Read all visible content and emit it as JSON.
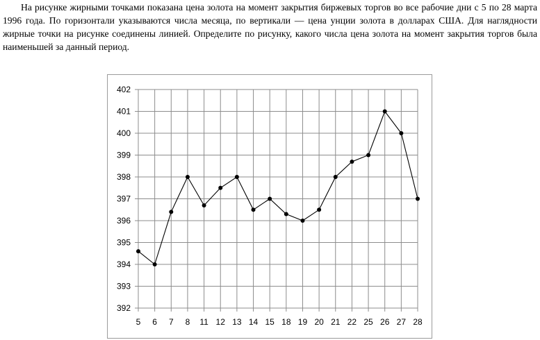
{
  "problem": {
    "text": "На рисунке жирными точками показана цена золота на момент закрытия биржевых торгов во все рабочие дни с 5 по 28 марта 1996 года. По горизонтали указываются числа месяца, по вертикали — цена унции золота в долларах США. Для наглядности жирные точки на рисунке соединены линией. Определите по рисунку, какого числа цена золота на момент закрытия торгов была наименьшей за данный период."
  },
  "chart_data": {
    "type": "line",
    "title": "",
    "xlabel": "",
    "ylabel": "",
    "categories": [
      "5",
      "6",
      "7",
      "8",
      "11",
      "12",
      "13",
      "14",
      "15",
      "18",
      "19",
      "20",
      "21",
      "22",
      "25",
      "26",
      "27",
      "28"
    ],
    "series": [
      {
        "values": [
          394.6,
          394.0,
          396.4,
          398.0,
          396.7,
          397.5,
          398.0,
          396.5,
          397.0,
          396.3,
          396.0,
          396.5,
          398.0,
          398.7,
          399.0,
          401.0,
          400.0,
          397.0
        ]
      }
    ],
    "ylim": [
      392,
      402
    ],
    "yticks": [
      "392",
      "393",
      "394",
      "395",
      "396",
      "397",
      "398",
      "399",
      "400",
      "401",
      "402"
    ],
    "grid": true,
    "legend": "none",
    "line_color": "#000000",
    "grid_color": "#8c8c8c"
  }
}
